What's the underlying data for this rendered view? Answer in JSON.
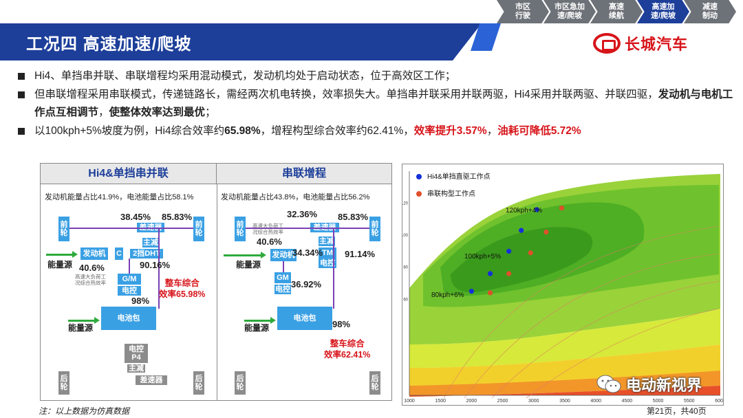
{
  "stages": [
    "市区\n行驶",
    "市区急加\n速/爬坡",
    "高速\n续航",
    "高速加\n速/爬坡",
    "减速\n制动"
  ],
  "active_stage": 3,
  "page_title": "工况四 高速加速/爬坡",
  "logo_text": "长城汽车",
  "bullets": {
    "b1": "Hi4、单挡串并联、串联增程均采用混动模式，发动机均处于启动状态，位于高效区工作；",
    "b2_a": "但串联增程采用串联模式，传递链路长，需经两次机电转换，效率损失大。单挡串并联采用并联两驱，Hi4采用并联两驱、并联四驱，",
    "b2_bold": "发动机与电机工作点互相调节",
    "b2_b": "，",
    "b2_bold2": "使整体效率达到最优",
    "b2_c": "；",
    "b3_a": "以100kph+5%坡度为例，Hi4综合效率约",
    "b3_bold": "65.98%",
    "b3_b": "，增程构型综合效率约62.41%，",
    "b3_red1": "效率提升3.57%",
    "b3_c": "，",
    "b3_red2": "油耗可降低5.72%"
  },
  "left": {
    "header": "Hi4&单挡串并联",
    "ratio": "发动机能量占比41.9%，电池能量占比58.1%",
    "front_wheel": "前\n轮",
    "rear_wheel": "后\n轮",
    "engine": "发动机",
    "c_box": "C",
    "gearbox": "2挡DHT",
    "main_reducer": "主减",
    "differential": "差速器",
    "gm": "G/M",
    "controller": "电控",
    "battery": "电池包",
    "p4": "电控\nP4",
    "rear_main": "主减",
    "rear_diff": "差速器",
    "v1": "38.45%",
    "v2": "85.83%",
    "v3": "40.6%",
    "v4": "90.16%",
    "v5": "98%",
    "energy1": "能量源",
    "energy2": "能量源",
    "small": "高速大负荷工\n况综合热效率",
    "eff": "整车综合\n效率65.98%"
  },
  "right": {
    "header": "串联增程",
    "ratio": "发动机能量占比43.8%，电池能量占比56.2%",
    "front_wheel": "前\n轮",
    "rear_wheel": "后\n轮",
    "engine": "发动机",
    "gm": "GM",
    "controller": "电控",
    "reducer": "差速器",
    "main": "主减",
    "tm": "TM",
    "tm_ctrl": "电控",
    "battery": "电池包",
    "v1": "32.36%",
    "v2": "85.83%",
    "v3": "40.6%",
    "v4": "34.34%",
    "v5": "91.14%",
    "v6": "36.92%",
    "v7": "98%",
    "energy1": "能量源",
    "energy2": "能量源",
    "small": "高速大负荷工\n况综合热效率",
    "eff": "整车综合\n效率62.41%"
  },
  "chart_data": {
    "type": "scatter",
    "title": "",
    "legend": [
      {
        "name": "Hi4&单挡直驱工作点",
        "color": "#1430d8"
      },
      {
        "name": "串联构型工作点",
        "color": "#e0502a"
      }
    ],
    "x_ticks": [
      1000,
      1500,
      2000,
      2500,
      3000,
      3500,
      4000,
      4500,
      5000,
      5500,
      6000
    ],
    "y_ticks": [
      60,
      80,
      100,
      120
    ],
    "xlim": [
      1000,
      6000
    ],
    "ylim": [
      0,
      140
    ],
    "annotations": [
      "120kph+4%",
      "100kph+5%",
      "80kph+6%"
    ],
    "series": [
      {
        "name": "Hi4&单挡直驱工作点",
        "points": [
          [
            2000,
            65
          ],
          [
            2300,
            76
          ],
          [
            2600,
            90
          ],
          [
            2800,
            103
          ],
          [
            3050,
            116
          ]
        ]
      },
      {
        "name": "串联构型工作点",
        "points": [
          [
            2300,
            64
          ],
          [
            2600,
            76
          ],
          [
            2950,
            89
          ],
          [
            3200,
            102
          ],
          [
            3450,
            117
          ]
        ]
      }
    ]
  },
  "note": "注：以上数据为仿真数据",
  "page_number": "第21页，共40页",
  "watermark": "电动新视界"
}
